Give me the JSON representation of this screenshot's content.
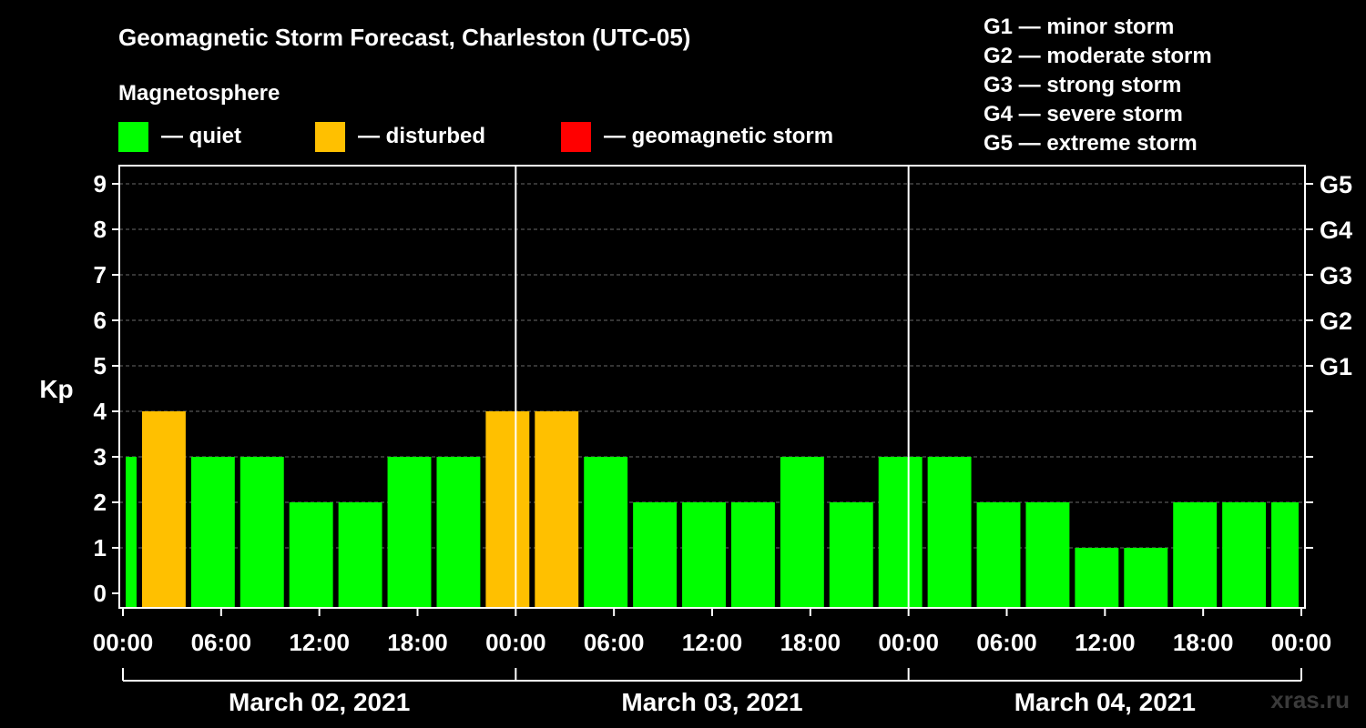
{
  "chart_data": {
    "type": "bar",
    "title": "Geomagnetic Storm Forecast, Charleston (UTC-05)",
    "legend_title": "Magnetosphere",
    "legend": [
      {
        "key": "quiet",
        "label": "— quiet",
        "color": "#00ff00"
      },
      {
        "key": "disturbed",
        "label": "— disturbed",
        "color": "#ffc000"
      },
      {
        "key": "storm",
        "label": "— geomagnetic storm",
        "color": "#ff0000"
      }
    ],
    "storm_scale": [
      "G1 — minor storm",
      "G2 — moderate storm",
      "G3 — strong storm",
      "G4 — severe storm",
      "G5 — extreme storm"
    ],
    "ylabel": "Kp",
    "ylim": [
      0,
      9
    ],
    "y_ticks": [
      "0",
      "1",
      "2",
      "3",
      "4",
      "5",
      "6",
      "7",
      "8",
      "9"
    ],
    "right_ticks": [
      {
        "kp": 5,
        "label": "G1"
      },
      {
        "kp": 6,
        "label": "G2"
      },
      {
        "kp": 7,
        "label": "G3"
      },
      {
        "kp": 8,
        "label": "G4"
      },
      {
        "kp": 9,
        "label": "G5"
      }
    ],
    "x_range_hours": [
      0,
      72
    ],
    "x_ticks": [
      {
        "h": 0,
        "label": "00:00"
      },
      {
        "h": 6,
        "label": "06:00"
      },
      {
        "h": 12,
        "label": "12:00"
      },
      {
        "h": 18,
        "label": "18:00"
      },
      {
        "h": 24,
        "label": "00:00"
      },
      {
        "h": 30,
        "label": "06:00"
      },
      {
        "h": 36,
        "label": "12:00"
      },
      {
        "h": 42,
        "label": "18:00"
      },
      {
        "h": 48,
        "label": "00:00"
      },
      {
        "h": 54,
        "label": "06:00"
      },
      {
        "h": 60,
        "label": "12:00"
      },
      {
        "h": 66,
        "label": "18:00"
      },
      {
        "h": 72,
        "label": "00:00"
      }
    ],
    "day_labels": [
      "March 02, 2021",
      "March 03, 2021",
      "March 04, 2021"
    ],
    "day_boundaries_hours": [
      24,
      48
    ],
    "series": [
      {
        "name": "Kp",
        "values": [
          {
            "start": 0,
            "end": 1,
            "kp": 3,
            "level": "quiet"
          },
          {
            "start": 1,
            "end": 4,
            "kp": 4,
            "level": "disturbed"
          },
          {
            "start": 4,
            "end": 7,
            "kp": 3,
            "level": "quiet"
          },
          {
            "start": 7,
            "end": 10,
            "kp": 3,
            "level": "quiet"
          },
          {
            "start": 10,
            "end": 13,
            "kp": 2,
            "level": "quiet"
          },
          {
            "start": 13,
            "end": 16,
            "kp": 2,
            "level": "quiet"
          },
          {
            "start": 16,
            "end": 19,
            "kp": 3,
            "level": "quiet"
          },
          {
            "start": 19,
            "end": 22,
            "kp": 3,
            "level": "quiet"
          },
          {
            "start": 22,
            "end": 25,
            "kp": 4,
            "level": "disturbed"
          },
          {
            "start": 25,
            "end": 28,
            "kp": 4,
            "level": "disturbed"
          },
          {
            "start": 28,
            "end": 31,
            "kp": 3,
            "level": "quiet"
          },
          {
            "start": 31,
            "end": 34,
            "kp": 2,
            "level": "quiet"
          },
          {
            "start": 34,
            "end": 37,
            "kp": 2,
            "level": "quiet"
          },
          {
            "start": 37,
            "end": 40,
            "kp": 2,
            "level": "quiet"
          },
          {
            "start": 40,
            "end": 43,
            "kp": 3,
            "level": "quiet"
          },
          {
            "start": 43,
            "end": 46,
            "kp": 2,
            "level": "quiet"
          },
          {
            "start": 46,
            "end": 49,
            "kp": 3,
            "level": "quiet"
          },
          {
            "start": 49,
            "end": 52,
            "kp": 3,
            "level": "quiet"
          },
          {
            "start": 52,
            "end": 55,
            "kp": 2,
            "level": "quiet"
          },
          {
            "start": 55,
            "end": 58,
            "kp": 2,
            "level": "quiet"
          },
          {
            "start": 58,
            "end": 61,
            "kp": 1,
            "level": "quiet"
          },
          {
            "start": 61,
            "end": 64,
            "kp": 1,
            "level": "quiet"
          },
          {
            "start": 64,
            "end": 67,
            "kp": 2,
            "level": "quiet"
          },
          {
            "start": 67,
            "end": 70,
            "kp": 2,
            "level": "quiet"
          },
          {
            "start": 70,
            "end": 72,
            "kp": 2,
            "level": "quiet"
          }
        ]
      }
    ],
    "grid": true
  },
  "watermark": "xras.ru"
}
